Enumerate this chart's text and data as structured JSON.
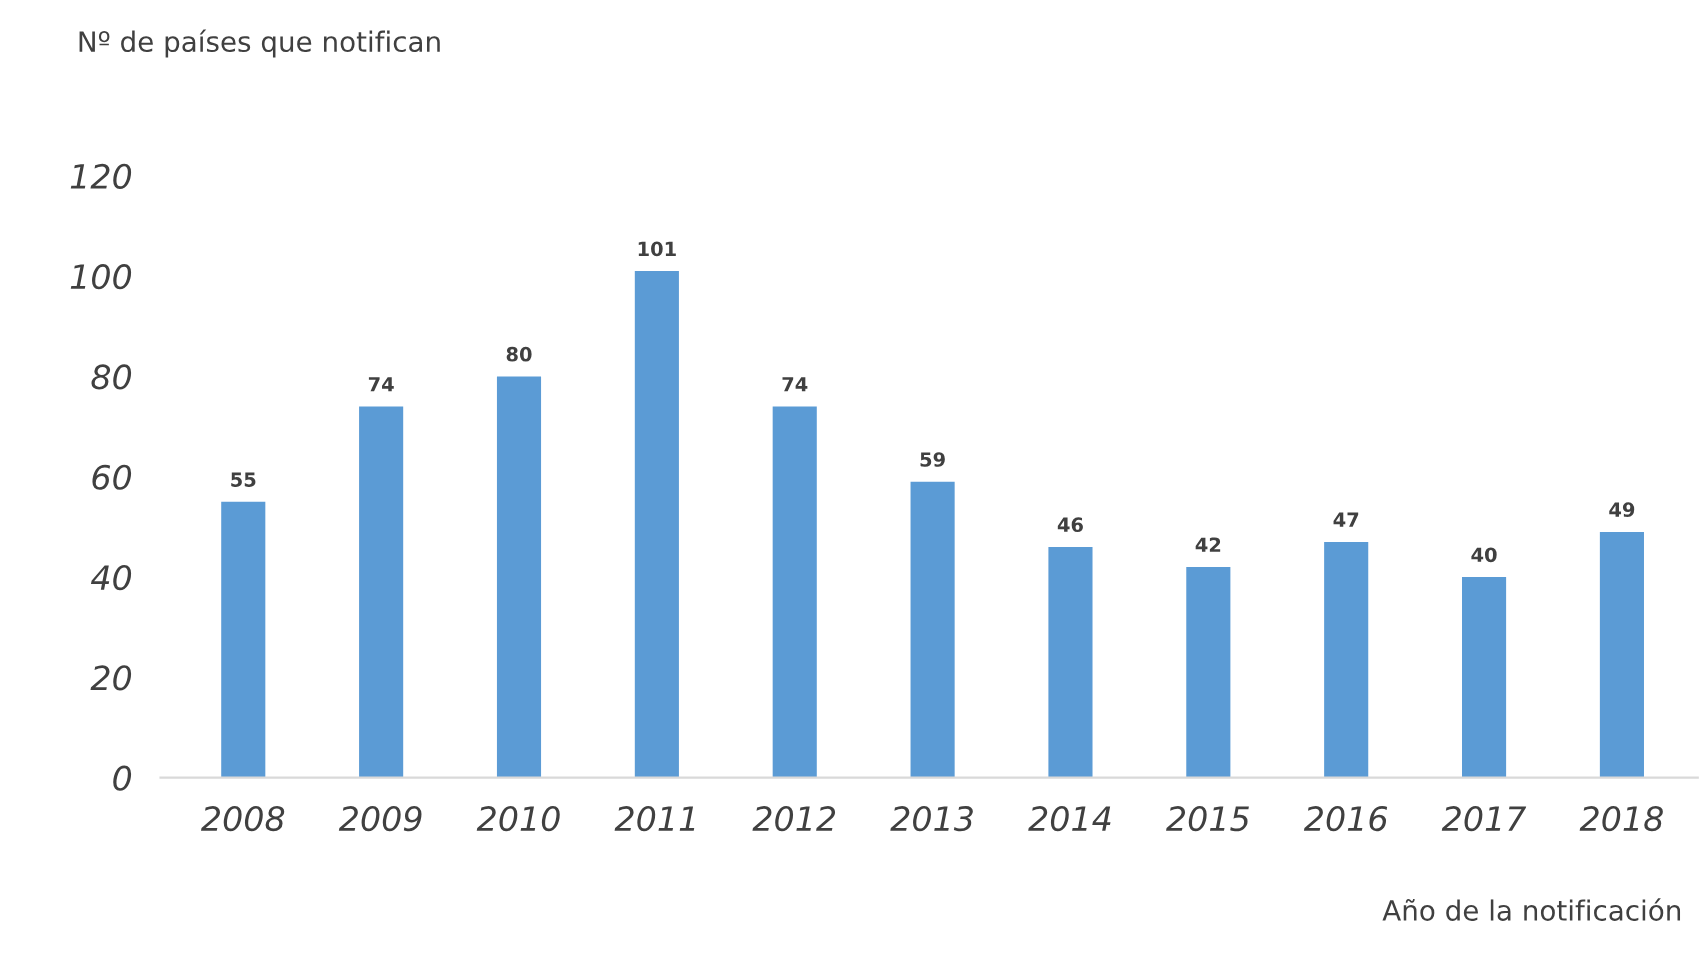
{
  "chart_data": {
    "type": "bar",
    "ylabel": "Nº de países que notifican",
    "xlabel": "Año de la notificación",
    "categories": [
      "2008",
      "2009",
      "2010",
      "2011",
      "2012",
      "2013",
      "2014",
      "2015",
      "2016",
      "2017",
      "2018"
    ],
    "values": [
      55,
      74,
      80,
      101,
      74,
      59,
      46,
      42,
      47,
      40,
      49
    ],
    "color": "#5b9bd5",
    "ylim": [
      0,
      120
    ],
    "yticks": [
      0,
      20,
      40,
      60,
      80,
      100,
      120
    ],
    "grid": false,
    "data_labels": true
  }
}
